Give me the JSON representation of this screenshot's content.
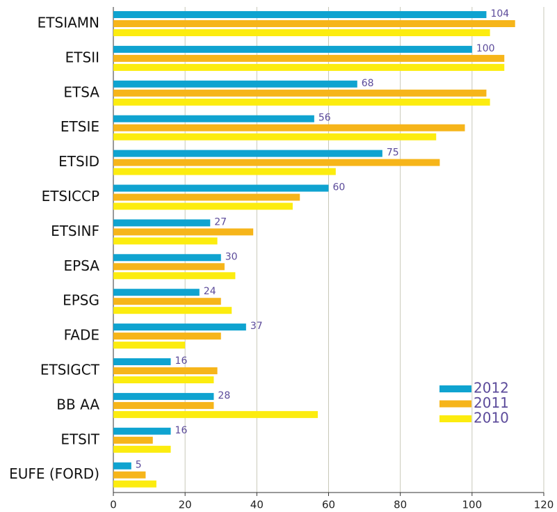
{
  "chart_data": {
    "type": "hbar",
    "categories": [
      "ETSIAMN",
      "ETSII",
      "ETSA",
      "ETSIE",
      "ETSID",
      "ETSICCP",
      "ETSINF",
      "EPSA",
      "EPSG",
      "FADE",
      "ETSIGCT",
      "BB AA",
      "ETSIT",
      "EUFE (FORD)"
    ],
    "series": [
      {
        "name": "2012",
        "color": "#0fa3d0",
        "data_labels": true,
        "values": [
          104,
          100,
          68,
          56,
          75,
          60,
          27,
          30,
          24,
          37,
          16,
          28,
          16,
          5
        ]
      },
      {
        "name": "2011",
        "color": "#f6b51a",
        "values": [
          112,
          109,
          104,
          98,
          91,
          52,
          39,
          31,
          30,
          30,
          29,
          28,
          11,
          9
        ]
      },
      {
        "name": "2010",
        "color": "#fcec0f",
        "values": [
          105,
          109,
          105,
          90,
          62,
          50,
          29,
          34,
          33,
          20,
          28,
          57,
          16,
          12
        ]
      }
    ],
    "xlim": [
      0,
      120
    ],
    "xticks": [
      0,
      20,
      40,
      60,
      80,
      100,
      120
    ],
    "grid": true,
    "legend": "lower right"
  }
}
